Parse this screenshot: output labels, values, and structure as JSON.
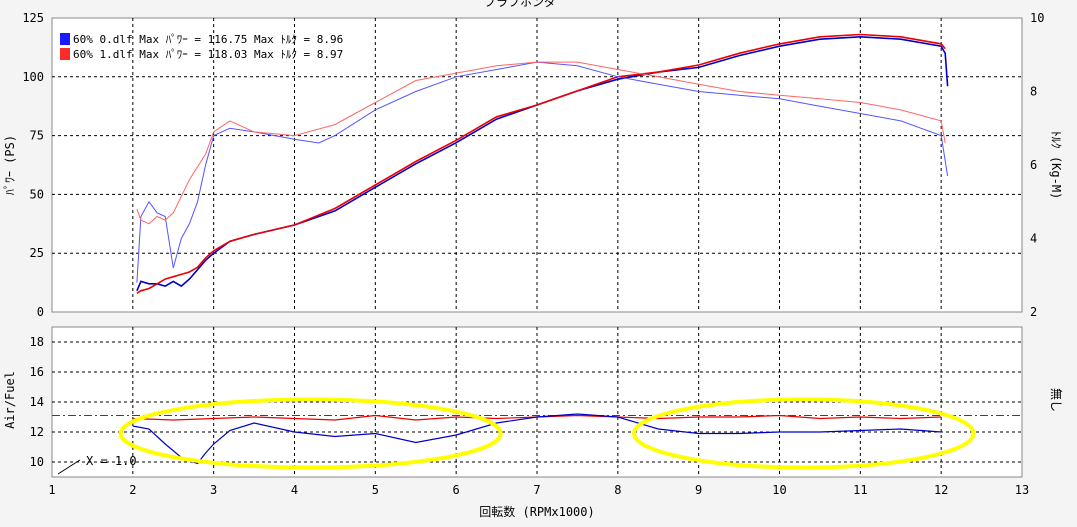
{
  "chart_data": [
    {
      "type": "line",
      "title": "ブラプホンダ",
      "xlabel": "回転数 (RPMx1000)",
      "ylabel": "ﾊﾟﾜｰ (PS)",
      "y2label": "ﾄﾙｸ (Kg-M)",
      "xlim": [
        1,
        13
      ],
      "ylim": [
        0,
        125
      ],
      "y2lim": [
        2,
        10
      ],
      "x_ticks": [
        "1",
        "2",
        "3",
        "4",
        "5",
        "6",
        "7",
        "8",
        "9",
        "10",
        "11",
        "12",
        "13"
      ],
      "y_ticks": [
        "0",
        "25",
        "50",
        "75",
        "100",
        "125"
      ],
      "y2_ticks": [
        "2",
        "4",
        "6",
        "8",
        "10"
      ],
      "grid": true,
      "legend_position": "top-left",
      "legend": [
        {
          "text": "60% 0.dlf Max ﾊﾟﾜｰ = 116.75  Max ﾄﾙｸ = 8.96",
          "color": "#1a1aff"
        },
        {
          "text": "60% 1.dlf Max ﾊﾟﾜｰ = 118.03  Max ﾄﾙｸ = 8.97",
          "color": "#ff2a2a"
        }
      ],
      "series": [
        {
          "role": "power",
          "color": "#0000cc",
          "x": [
            2.05,
            2.1,
            2.2,
            2.3,
            2.4,
            2.5,
            2.6,
            2.7,
            2.8,
            2.9,
            3,
            3.2,
            3.5,
            4,
            4.5,
            5,
            5.5,
            6,
            6.5,
            7,
            7.5,
            8,
            8.5,
            9,
            9.5,
            10,
            10.5,
            11,
            11.5,
            12,
            12.05,
            12.08
          ],
          "y": [
            9,
            13,
            12,
            12,
            11,
            13,
            11,
            14,
            18,
            22,
            25,
            30,
            33,
            37,
            43,
            53,
            63,
            72,
            82,
            88,
            94,
            99,
            102,
            104,
            109,
            113,
            116,
            117,
            116,
            113,
            110,
            96
          ]
        },
        {
          "role": "power",
          "color": "#ee0000",
          "x": [
            2.05,
            2.1,
            2.2,
            2.3,
            2.4,
            2.5,
            2.6,
            2.7,
            2.8,
            2.9,
            3,
            3.2,
            3.5,
            4,
            4.5,
            5,
            5.5,
            6,
            6.5,
            7,
            7.5,
            8,
            8.5,
            9,
            9.5,
            10,
            10.5,
            11,
            11.5,
            12,
            12.05
          ],
          "y": [
            8,
            9,
            10,
            12,
            14,
            15,
            16,
            17,
            19,
            23,
            26,
            30,
            33,
            37,
            44,
            54,
            64,
            73,
            83,
            88,
            94,
            100,
            102,
            105,
            110,
            114,
            117,
            118,
            117,
            114,
            112
          ]
        },
        {
          "role": "torque",
          "color": "#5555ff",
          "x": [
            2.05,
            2.1,
            2.2,
            2.3,
            2.4,
            2.5,
            2.6,
            2.7,
            2.8,
            2.9,
            3,
            3.2,
            3.5,
            4,
            4.3,
            4.5,
            5,
            5.5,
            6,
            6.5,
            7,
            7.5,
            8,
            8.5,
            9,
            9.5,
            10,
            10.5,
            11,
            11.5,
            12,
            12.08
          ],
          "y": [
            2.8,
            4.6,
            5.0,
            4.7,
            4.6,
            3.2,
            4.0,
            4.4,
            5.0,
            6.0,
            6.8,
            7.0,
            6.9,
            6.7,
            6.6,
            6.8,
            7.5,
            8.0,
            8.4,
            8.6,
            8.8,
            8.7,
            8.4,
            8.2,
            8.0,
            7.9,
            7.8,
            7.6,
            7.4,
            7.2,
            6.8,
            5.7
          ]
        },
        {
          "role": "torque",
          "color": "#ff6666",
          "x": [
            2.05,
            2.1,
            2.2,
            2.3,
            2.4,
            2.5,
            2.7,
            2.9,
            3,
            3.2,
            3.5,
            4,
            4.5,
            5,
            5.5,
            6,
            6.5,
            7,
            7.5,
            8,
            8.5,
            9,
            9.5,
            10,
            10.5,
            11,
            11.5,
            12,
            12.05
          ],
          "y": [
            4.8,
            4.5,
            4.4,
            4.6,
            4.5,
            4.7,
            5.6,
            6.3,
            6.9,
            7.2,
            6.9,
            6.8,
            7.1,
            7.7,
            8.3,
            8.5,
            8.7,
            8.8,
            8.8,
            8.6,
            8.4,
            8.2,
            8.0,
            7.9,
            7.8,
            7.7,
            7.5,
            7.2,
            6.6
          ]
        }
      ]
    },
    {
      "type": "line",
      "xlabel": "回転数 (RPMx1000)",
      "ylabel": "Air/Fuel",
      "y2label": "無し",
      "xlim": [
        1,
        13
      ],
      "ylim": [
        9,
        19
      ],
      "y_ticks": [
        "10",
        "12",
        "14",
        "16",
        "18"
      ],
      "grid": true,
      "annotation": "X = 1.0",
      "reference_line": {
        "y": 13.1,
        "color": "#dd0000",
        "style": "dash-dot"
      },
      "highlights": [
        {
          "x_range": [
            1.85,
            6.55
          ],
          "color": "#ffff00"
        },
        {
          "x_range": [
            8.2,
            12.4
          ],
          "color": "#ffff00"
        }
      ],
      "series": [
        {
          "color": "#ee0000",
          "x": [
            2,
            2.5,
            3,
            3.5,
            4,
            4.5,
            5,
            5.5,
            6,
            6.5,
            7,
            7.5,
            8,
            8.5,
            9,
            9.5,
            10,
            10.5,
            11,
            11.5,
            12
          ],
          "y": [
            12.9,
            12.8,
            12.9,
            13.0,
            12.9,
            12.8,
            13.1,
            12.8,
            13.0,
            12.9,
            13.0,
            13.1,
            13.0,
            12.9,
            13.0,
            13.0,
            13.1,
            12.9,
            13.0,
            12.9,
            13.0
          ]
        },
        {
          "color": "#0000cc",
          "x": [
            2,
            2.2,
            2.4,
            2.6,
            2.8,
            2.9,
            3,
            3.2,
            3.5,
            4,
            4.5,
            5,
            5.5,
            6,
            6.5,
            7,
            7.5,
            8,
            8.5,
            9,
            9.5,
            10,
            10.5,
            11,
            11.5,
            12
          ],
          "y": [
            12.4,
            12.2,
            11.2,
            10.3,
            9.9,
            10.6,
            11.2,
            12.1,
            12.6,
            12.0,
            11.7,
            11.9,
            11.3,
            11.8,
            12.6,
            13.0,
            13.2,
            13.0,
            12.2,
            11.9,
            11.9,
            12.0,
            12.0,
            12.1,
            12.2,
            12.0
          ]
        }
      ]
    }
  ]
}
